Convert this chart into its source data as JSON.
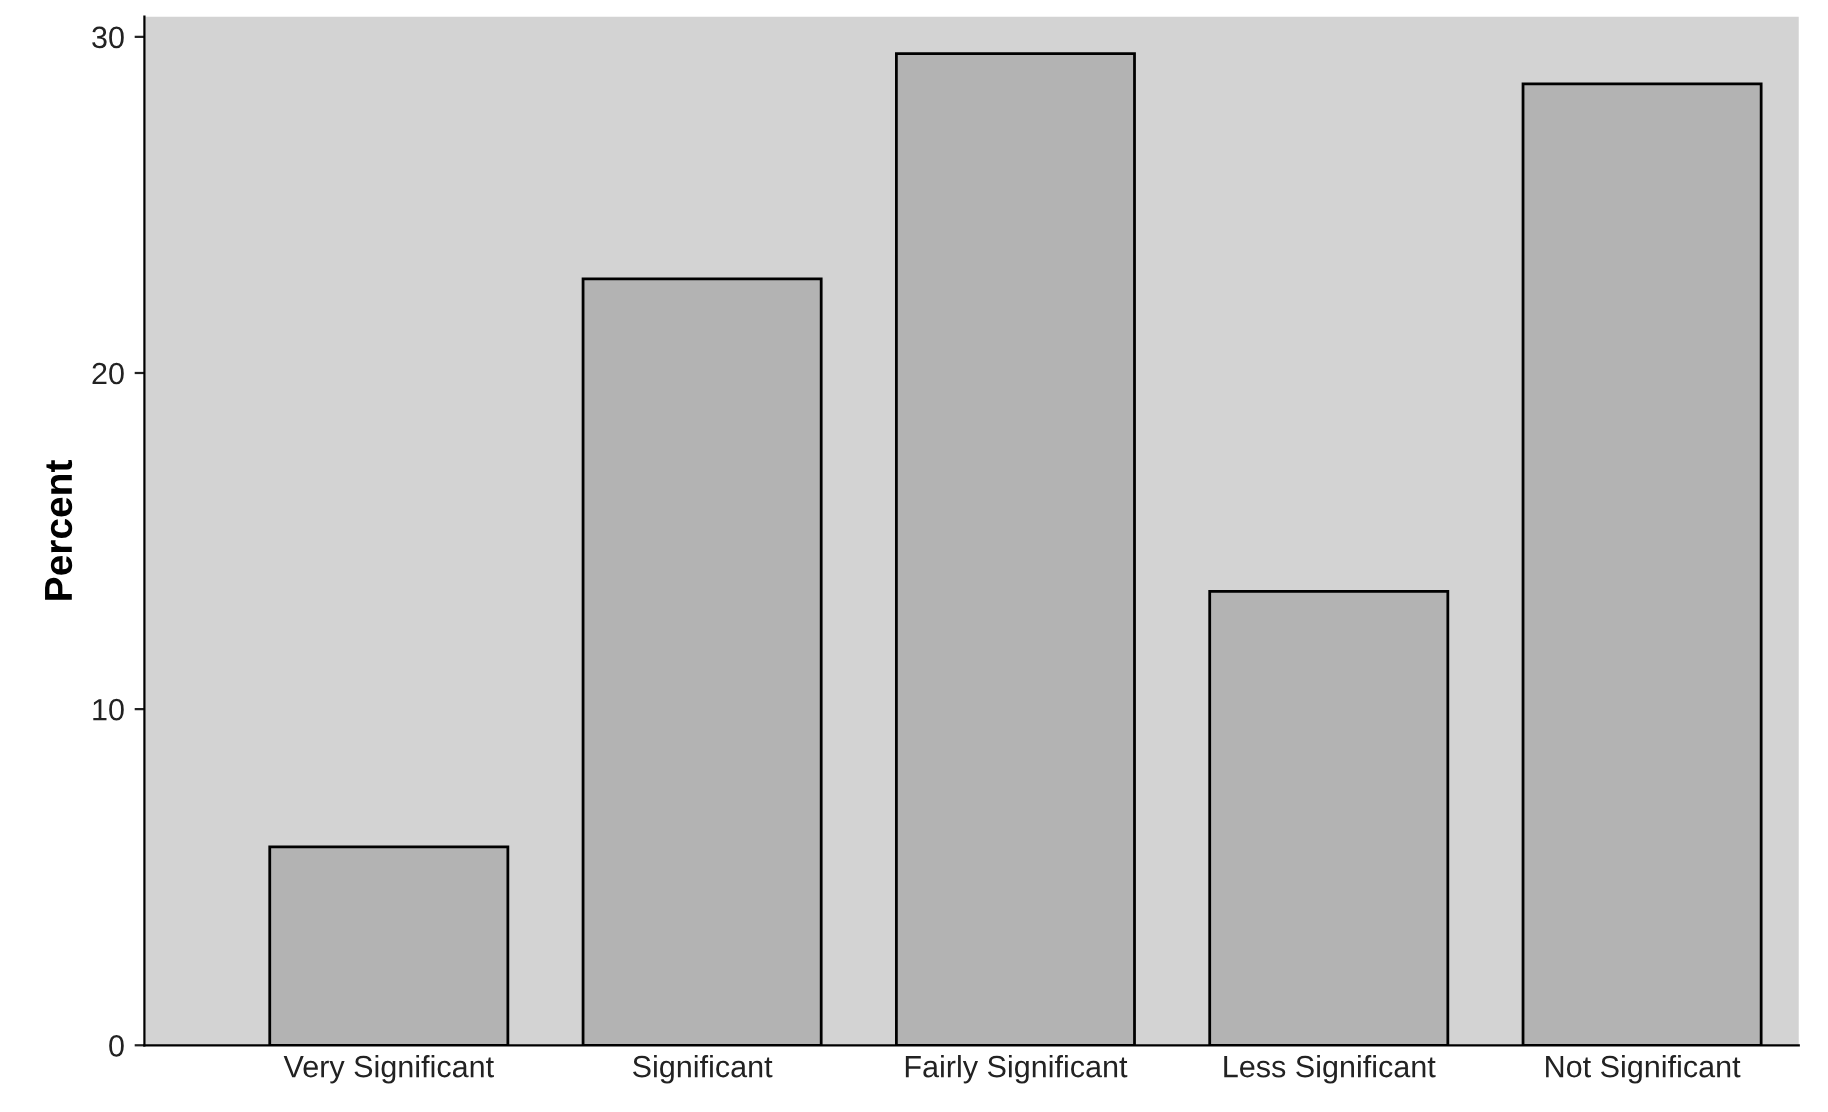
{
  "chart_data": {
    "type": "bar",
    "ylabel": "Percent",
    "categories": [
      "Very Significant",
      "Significant",
      "Fairly Significant",
      "Less Significant",
      "Not Significant"
    ],
    "values": [
      5.9,
      22.8,
      29.5,
      13.5,
      28.6
    ],
    "color": "#b3b3b3",
    "ylim": [
      0,
      30.6
    ],
    "yticks": [
      0,
      10,
      20,
      30
    ],
    "grid": false,
    "legend": false
  }
}
